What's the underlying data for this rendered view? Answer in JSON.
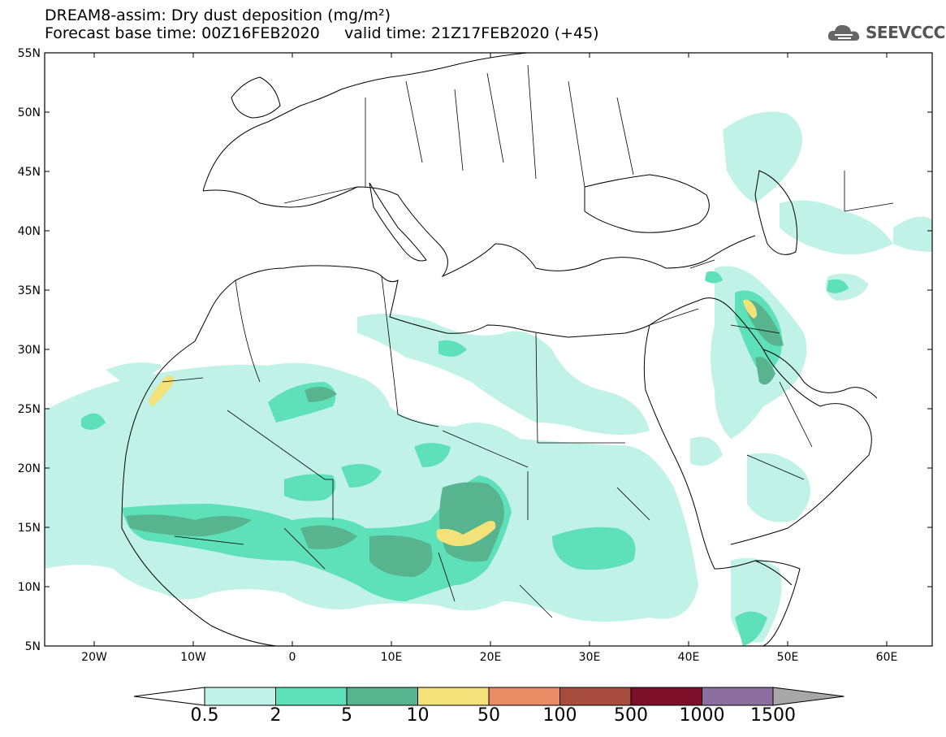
{
  "header": {
    "title_line1": "DREAM8-assim: Dry dust deposition (mg/m²)",
    "title_line2": "Forecast base time: 00Z16FEB2020     valid time: 21Z17FEB2020 (+45)"
  },
  "logo": {
    "text": "SEEVCCC",
    "icon": "cloud-icon"
  },
  "map": {
    "lat_ticks": [
      "55N",
      "50N",
      "45N",
      "40N",
      "35N",
      "30N",
      "25N",
      "20N",
      "15N",
      "10N",
      "5N"
    ],
    "lon_ticks": [
      "20W",
      "10W",
      "0",
      "10E",
      "20E",
      "30E",
      "40E",
      "50E",
      "60E"
    ]
  },
  "colorbar": {
    "labels": [
      "0.5",
      "2",
      "5",
      "10",
      "50",
      "100",
      "500",
      "1000",
      "1500"
    ],
    "colors": [
      "#c0f2e8",
      "#5ee0b8",
      "#58b48e",
      "#f2e279",
      "#e98c66",
      "#a94c40",
      "#7d0f2a",
      "#8d6ea0",
      "#a8a8a8"
    ],
    "under_color": "#ffffff"
  }
}
